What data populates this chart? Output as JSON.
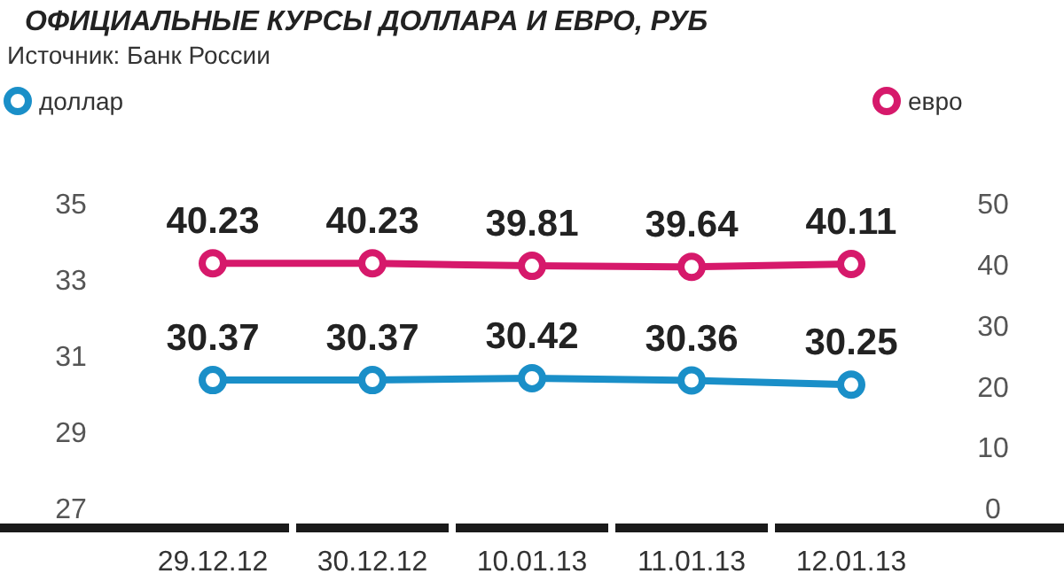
{
  "chart_data": {
    "type": "line",
    "title": "ОФИЦИАЛЬНЫЕ КУРСЫ ДОЛЛАРА И ЕВРО, РУБ",
    "subtitle": "Источник: Банк России",
    "categories": [
      "29.12.12",
      "30.12.12",
      "10.01.13",
      "11.01.13",
      "12.01.13"
    ],
    "series": [
      {
        "name": "доллар",
        "color": "#1a8fc8",
        "values": [
          30.37,
          30.37,
          30.42,
          30.36,
          30.25
        ]
      },
      {
        "name": "евро",
        "color": "#d6196b",
        "axis": "y2",
        "values": [
          40.23,
          40.23,
          39.81,
          39.64,
          40.11
        ]
      }
    ],
    "ylim": [
      27,
      35
    ],
    "yticks": [
      27,
      29,
      31,
      33,
      35
    ],
    "y2lim": [
      0,
      50
    ],
    "y2ticks": [
      0,
      10,
      20,
      30,
      40,
      50
    ],
    "data_labels": true,
    "marker": "circle",
    "legend": "top",
    "grid": false
  }
}
